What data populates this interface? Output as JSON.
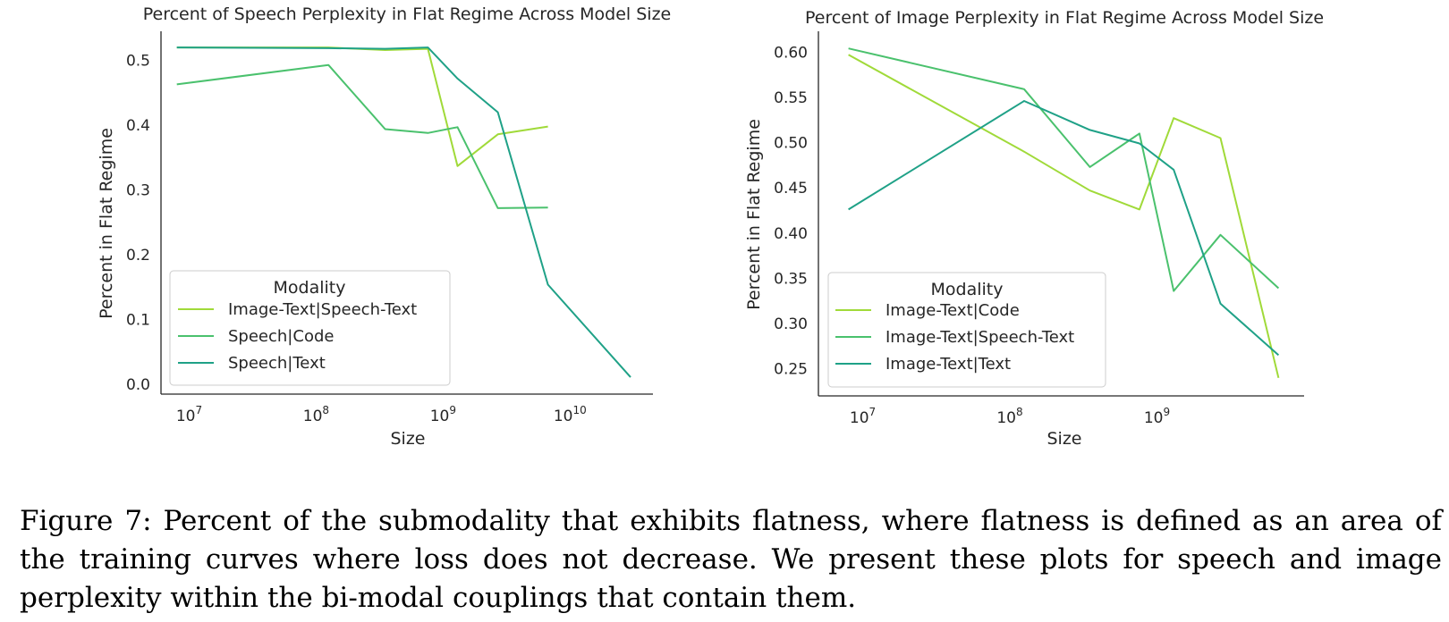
{
  "charts": [
    {
      "id": "speech",
      "chart_data": {
        "type": "line",
        "title": "Percent of Speech Perplexity in Flat Regime Across Model Size",
        "xlabel": "Size",
        "ylabel": "Percent in Flat Regime",
        "xscale": "log",
        "xlim": [
          6000000,
          45000000000
        ],
        "ylim": [
          -0.015,
          0.545
        ],
        "xticks": [
          {
            "value": 10000000,
            "base": "10",
            "exp": "7"
          },
          {
            "value": 100000000,
            "base": "10",
            "exp": "8"
          },
          {
            "value": 1000000000,
            "base": "10",
            "exp": "9"
          },
          {
            "value": 10000000000,
            "base": "10",
            "exp": "10"
          }
        ],
        "yticks": [
          {
            "value": 0.0,
            "label": "0.0"
          },
          {
            "value": 0.1,
            "label": "0.1"
          },
          {
            "value": 0.2,
            "label": "0.2"
          },
          {
            "value": 0.3,
            "label": "0.3"
          },
          {
            "value": 0.4,
            "label": "0.4"
          },
          {
            "value": 0.5,
            "label": "0.5"
          }
        ],
        "grid": false,
        "legend": {
          "title": "Modality",
          "placement": "bottom-left"
        },
        "series": [
          {
            "name": "Image-Text|Speech-Text",
            "color": "#a0da39",
            "x": [
              8000000,
              125000000,
              350000000,
              760000000,
              1300000000,
              2700000000,
              6700000000
            ],
            "y": [
              0.52,
              0.52,
              0.516,
              0.518,
              0.337,
              0.386,
              0.398
            ]
          },
          {
            "name": "Speech|Code",
            "color": "#4ac16d",
            "x": [
              8000000,
              125000000,
              350000000,
              760000000,
              1300000000,
              2700000000,
              6700000000
            ],
            "y": [
              0.463,
              0.493,
              0.394,
              0.388,
              0.397,
              0.272,
              0.273
            ]
          },
          {
            "name": "Speech|Text",
            "color": "#1fa187",
            "x": [
              8000000,
              125000000,
              350000000,
              760000000,
              1300000000,
              2700000000,
              6700000000,
              30000000000
            ],
            "y": [
              0.52,
              0.519,
              0.518,
              0.52,
              0.472,
              0.42,
              0.154,
              0.011
            ]
          }
        ]
      }
    },
    {
      "id": "image",
      "chart_data": {
        "type": "line",
        "title": "Percent of Image Perplexity in Flat Regime Across Model Size",
        "xlabel": "Size",
        "ylabel": "Percent in Flat Regime",
        "xscale": "log",
        "xlim": [
          5000000,
          10000000000
        ],
        "ylim": [
          0.22,
          0.623
        ],
        "xticks": [
          {
            "value": 10000000,
            "base": "10",
            "exp": "7"
          },
          {
            "value": 100000000,
            "base": "10",
            "exp": "8"
          },
          {
            "value": 1000000000,
            "base": "10",
            "exp": "9"
          }
        ],
        "yticks": [
          {
            "value": 0.25,
            "label": "0.25"
          },
          {
            "value": 0.3,
            "label": "0.30"
          },
          {
            "value": 0.35,
            "label": "0.35"
          },
          {
            "value": 0.4,
            "label": "0.40"
          },
          {
            "value": 0.45,
            "label": "0.45"
          },
          {
            "value": 0.5,
            "label": "0.50"
          },
          {
            "value": 0.55,
            "label": "0.55"
          },
          {
            "value": 0.6,
            "label": "0.60"
          }
        ],
        "grid": false,
        "legend": {
          "title": "Modality",
          "placement": "bottom-left"
        },
        "series": [
          {
            "name": "Image-Text|Code",
            "color": "#a0da39",
            "x": [
              8000000,
              125000000,
              350000000,
              760000000,
              1300000000,
              2700000000,
              6700000000
            ],
            "y": [
              0.597,
              0.49,
              0.447,
              0.426,
              0.527,
              0.505,
              0.24
            ]
          },
          {
            "name": "Image-Text|Speech-Text",
            "color": "#4ac16d",
            "x": [
              8000000,
              125000000,
              350000000,
              760000000,
              1300000000,
              2700000000,
              6700000000
            ],
            "y": [
              0.604,
              0.559,
              0.473,
              0.51,
              0.336,
              0.398,
              0.339
            ]
          },
          {
            "name": "Image-Text|Text",
            "color": "#1fa187",
            "x": [
              8000000,
              125000000,
              350000000,
              760000000,
              1300000000,
              2700000000,
              6700000000
            ],
            "y": [
              0.426,
              0.546,
              0.514,
              0.499,
              0.47,
              0.322,
              0.265
            ]
          }
        ]
      }
    }
  ],
  "caption": "Figure 7: Percent of the submodality that exhibits flatness, where flatness is defined as an area of the training curves where loss does not decrease. We present these plots for speech and image perplexity within the bi-modal couplings that contain them."
}
